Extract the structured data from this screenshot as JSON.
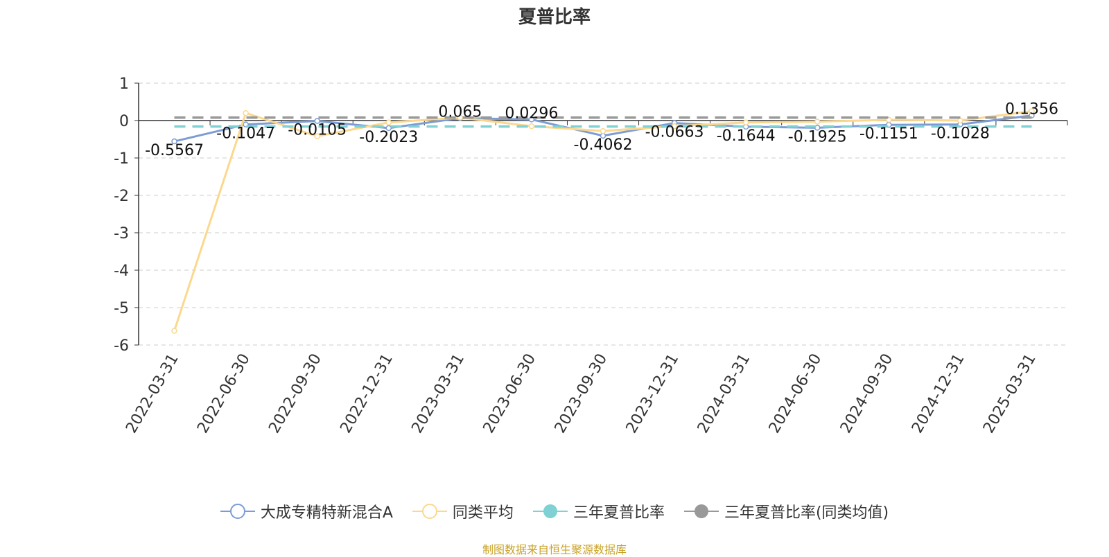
{
  "chart_data": {
    "type": "line",
    "title": "夏普比率",
    "categories": [
      "2022-03-31",
      "2022-06-30",
      "2022-09-30",
      "2022-12-31",
      "2023-03-31",
      "2023-06-30",
      "2023-09-30",
      "2023-12-31",
      "2024-03-31",
      "2024-06-30",
      "2024-09-30",
      "2024-12-31",
      "2025-03-31"
    ],
    "ylim": [
      -6,
      1
    ],
    "yticks": [
      1,
      0,
      -1,
      -2,
      -3,
      -4,
      -5,
      -6
    ],
    "grid": true,
    "legend_position": "bottom",
    "series": [
      {
        "name": "大成专精特新混合A",
        "color": "#7b9cd6",
        "style": "line",
        "values": [
          -0.5567,
          -0.1047,
          -0.0105,
          -0.2023,
          0.065,
          0.0296,
          -0.4062,
          -0.0663,
          -0.1644,
          -0.1925,
          -0.1151,
          -0.1028,
          0.1356
        ],
        "labels": [
          "-0.5567",
          "-0.1047",
          "-0.0105",
          "-0.2023",
          "0.065",
          "0.0296",
          "-0.4062",
          "-0.0663",
          "-0.1644",
          "-0.1925",
          "-0.1151",
          "-0.1028",
          "0.1356"
        ]
      },
      {
        "name": "同类平均",
        "color": "#fbd88e",
        "style": "line",
        "values": [
          -5.62,
          0.2,
          -0.42,
          -0.05,
          0.08,
          -0.15,
          -0.28,
          -0.15,
          -0.05,
          -0.03,
          0.02,
          0.0,
          0.25
        ]
      },
      {
        "name": "三年夏普比率",
        "color": "#7fd1d4",
        "style": "dashed",
        "values": [
          -0.16,
          -0.16,
          -0.16,
          -0.16,
          -0.16,
          -0.16,
          -0.16,
          -0.16,
          -0.16,
          -0.16,
          -0.16,
          -0.16,
          -0.16
        ]
      },
      {
        "name": "三年夏普比率(同类均值)",
        "color": "#999999",
        "style": "dashed",
        "values": [
          0.08,
          0.08,
          0.08,
          0.08,
          0.08,
          0.08,
          0.08,
          0.08,
          0.08,
          0.08,
          0.08,
          0.08,
          0.08
        ]
      }
    ]
  },
  "legend": {
    "items": [
      "大成专精特新混合A",
      "同类平均",
      "三年夏普比率",
      "三年夏普比率(同类均值)"
    ]
  },
  "footer": {
    "source": "制图数据来自恒生聚源数据库"
  }
}
